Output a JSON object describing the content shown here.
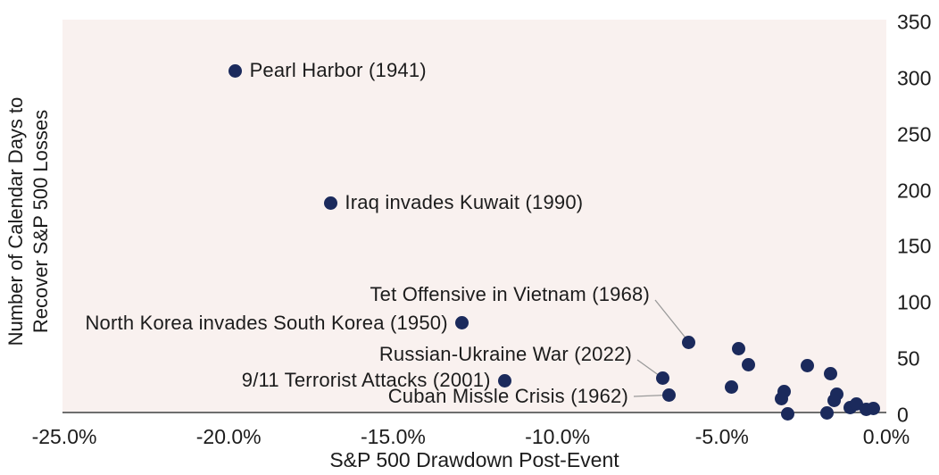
{
  "chart_data": {
    "type": "scatter",
    "title": "",
    "xlabel": "S&P 500 Drawdown Post-Event",
    "ylabel": "Number of Calendar Days to Recover S&P 500 Losses",
    "ylabel_lines": [
      "Number of Calendar Days to",
      "Recover S&P 500 Losses"
    ],
    "xlim_pct": [
      -25.0,
      0.0
    ],
    "ylim_days": [
      0,
      350
    ],
    "grid": false,
    "legend": null,
    "y_axis_side": "right",
    "x_ticks": [
      {
        "value": -25,
        "label": "-25.0%"
      },
      {
        "value": -20,
        "label": "-20.0%"
      },
      {
        "value": -15,
        "label": "-15.0%"
      },
      {
        "value": -10,
        "label": "-10.0%"
      },
      {
        "value": -5,
        "label": "-5.0%"
      },
      {
        "value": 0,
        "label": "0.0%"
      }
    ],
    "y_ticks": [
      {
        "value": 0,
        "label": "0"
      },
      {
        "value": 50,
        "label": "50"
      },
      {
        "value": 100,
        "label": "100"
      },
      {
        "value": 150,
        "label": "150"
      },
      {
        "value": 200,
        "label": "200"
      },
      {
        "value": 250,
        "label": "250"
      },
      {
        "value": 300,
        "label": "300"
      },
      {
        "value": 350,
        "label": "350"
      }
    ],
    "colors": {
      "marker": "#1b2a5c",
      "plot_bg": "#f9f1ef",
      "axis_line": "#6e6e6e",
      "leader_line": "#9a9a9a",
      "text": "#1c1c1c"
    },
    "points": [
      {
        "id": "pearl-harbor",
        "label": "Pearl Harbor (1941)",
        "x_pct": -19.8,
        "days": 307
      },
      {
        "id": "iraq-kuwait",
        "label": "Iraq invades Kuwait (1990)",
        "x_pct": -16.9,
        "days": 189
      },
      {
        "id": "north-korea",
        "label": "North Korea invades South Korea (1950)",
        "x_pct": -12.9,
        "days": 82
      },
      {
        "id": "tet-offensive",
        "label": "Tet Offensive in Vietnam (1968)",
        "x_pct": -6.0,
        "days": 65
      },
      {
        "id": "russia-ukraine",
        "label": "Russian-Ukraine War (2022)",
        "x_pct": -6.8,
        "days": 33
      },
      {
        "id": "sep11",
        "label": "9/11 Terrorist Attacks (2001)",
        "x_pct": -11.6,
        "days": 31
      },
      {
        "id": "cuban-missile",
        "label": "Cuban Missle Crisis (1962)",
        "x_pct": -6.6,
        "days": 18
      },
      {
        "x_pct": -4.5,
        "days": 59
      },
      {
        "x_pct": -4.2,
        "days": 45
      },
      {
        "x_pct": -4.7,
        "days": 25
      },
      {
        "x_pct": -3.1,
        "days": 21
      },
      {
        "x_pct": -3.2,
        "days": 15
      },
      {
        "x_pct": -3.0,
        "days": 1
      },
      {
        "x_pct": -2.4,
        "days": 44
      },
      {
        "x_pct": -1.7,
        "days": 37
      },
      {
        "x_pct": -1.5,
        "days": 19
      },
      {
        "x_pct": -1.6,
        "days": 13
      },
      {
        "x_pct": -1.8,
        "days": 2
      },
      {
        "x_pct": -1.1,
        "days": 7
      },
      {
        "x_pct": -0.9,
        "days": 10
      },
      {
        "x_pct": -0.6,
        "days": 5
      },
      {
        "x_pct": -0.4,
        "days": 6
      }
    ]
  }
}
